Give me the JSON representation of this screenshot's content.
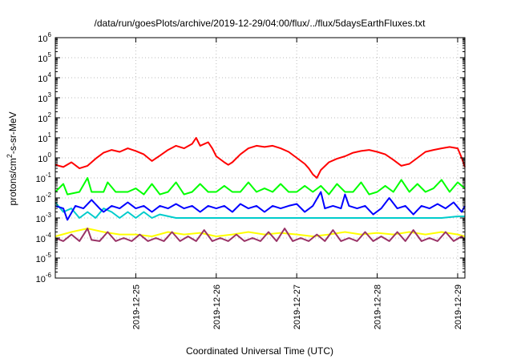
{
  "chart_data": {
    "type": "line",
    "title": "/data/run/goesPlots/archive/2019-12-29/04:00/flux/../flux/5daysEarthFluxes.txt",
    "xlabel": "Coordinated Universal Time (UTC)",
    "ylabel_parts": [
      "protons/cm",
      "2",
      "-s-sr-MeV"
    ],
    "yscale": "log",
    "ylim": [
      1e-06,
      1000000.0
    ],
    "xlim": [
      0.0,
      5.09
    ],
    "x_origin_date": "2019-12-24",
    "y_ticks": [
      {
        "base": "10",
        "exp": "-6"
      },
      {
        "base": "10",
        "exp": "-5"
      },
      {
        "base": "10",
        "exp": "-4"
      },
      {
        "base": "10",
        "exp": "-3"
      },
      {
        "base": "10",
        "exp": "-2"
      },
      {
        "base": "10",
        "exp": "-1"
      },
      {
        "base": "10",
        "exp": "0"
      },
      {
        "base": "10",
        "exp": "1"
      },
      {
        "base": "10",
        "exp": "2"
      },
      {
        "base": "10",
        "exp": "3"
      },
      {
        "base": "10",
        "exp": "4"
      },
      {
        "base": "10",
        "exp": "5"
      },
      {
        "base": "10",
        "exp": "6"
      }
    ],
    "x_ticks": [
      "2019-12-25",
      "2019-12-26",
      "2019-12-27",
      "2019-12-28",
      "2019-12-29"
    ],
    "x_tick_days": [
      1,
      2,
      3,
      4,
      5
    ],
    "grid": true,
    "series": [
      {
        "color": "#ff0000",
        "points": [
          [
            0.0,
            0.45
          ],
          [
            0.1,
            0.35
          ],
          [
            0.2,
            0.6
          ],
          [
            0.3,
            0.3
          ],
          [
            0.4,
            0.4
          ],
          [
            0.5,
            0.9
          ],
          [
            0.6,
            1.8
          ],
          [
            0.7,
            2.5
          ],
          [
            0.8,
            2.0
          ],
          [
            0.9,
            3.0
          ],
          [
            1.0,
            2.2
          ],
          [
            1.1,
            1.5
          ],
          [
            1.2,
            0.7
          ],
          [
            1.3,
            1.3
          ],
          [
            1.4,
            2.5
          ],
          [
            1.5,
            4.0
          ],
          [
            1.6,
            3.0
          ],
          [
            1.7,
            5.0
          ],
          [
            1.75,
            10.0
          ],
          [
            1.8,
            4.0
          ],
          [
            1.9,
            6.0
          ],
          [
            1.95,
            3.0
          ],
          [
            2.0,
            1.2
          ],
          [
            2.1,
            0.6
          ],
          [
            2.15,
            0.45
          ],
          [
            2.2,
            0.6
          ],
          [
            2.3,
            1.5
          ],
          [
            2.4,
            3.0
          ],
          [
            2.5,
            4.0
          ],
          [
            2.6,
            3.5
          ],
          [
            2.7,
            4.0
          ],
          [
            2.8,
            3.0
          ],
          [
            2.9,
            2.0
          ],
          [
            3.0,
            1.0
          ],
          [
            3.1,
            0.5
          ],
          [
            3.15,
            0.3
          ],
          [
            3.2,
            0.15
          ],
          [
            3.25,
            0.1
          ],
          [
            3.3,
            0.25
          ],
          [
            3.4,
            0.6
          ],
          [
            3.5,
            0.9
          ],
          [
            3.6,
            1.2
          ],
          [
            3.7,
            1.8
          ],
          [
            3.8,
            2.2
          ],
          [
            3.9,
            2.5
          ],
          [
            4.0,
            2.0
          ],
          [
            4.1,
            1.5
          ],
          [
            4.2,
            0.8
          ],
          [
            4.3,
            0.4
          ],
          [
            4.4,
            0.5
          ],
          [
            4.5,
            1.0
          ],
          [
            4.6,
            2.0
          ],
          [
            4.7,
            2.5
          ],
          [
            4.8,
            3.0
          ],
          [
            4.9,
            3.5
          ],
          [
            5.0,
            3.0
          ],
          [
            5.05,
            1.0
          ],
          [
            5.09,
            0.35
          ]
        ]
      },
      {
        "color": "#00ff00",
        "points": [
          [
            0.0,
            0.02
          ],
          [
            0.1,
            0.05
          ],
          [
            0.15,
            0.015
          ],
          [
            0.3,
            0.02
          ],
          [
            0.4,
            0.1
          ],
          [
            0.45,
            0.02
          ],
          [
            0.6,
            0.02
          ],
          [
            0.65,
            0.06
          ],
          [
            0.75,
            0.02
          ],
          [
            0.9,
            0.02
          ],
          [
            1.0,
            0.03
          ],
          [
            1.1,
            0.015
          ],
          [
            1.2,
            0.05
          ],
          [
            1.3,
            0.015
          ],
          [
            1.4,
            0.02
          ],
          [
            1.5,
            0.06
          ],
          [
            1.6,
            0.015
          ],
          [
            1.7,
            0.02
          ],
          [
            1.8,
            0.05
          ],
          [
            1.9,
            0.02
          ],
          [
            2.0,
            0.02
          ],
          [
            2.1,
            0.04
          ],
          [
            2.2,
            0.02
          ],
          [
            2.3,
            0.02
          ],
          [
            2.4,
            0.06
          ],
          [
            2.5,
            0.02
          ],
          [
            2.6,
            0.03
          ],
          [
            2.7,
            0.02
          ],
          [
            2.8,
            0.05
          ],
          [
            2.9,
            0.02
          ],
          [
            3.0,
            0.02
          ],
          [
            3.1,
            0.04
          ],
          [
            3.2,
            0.02
          ],
          [
            3.3,
            0.04
          ],
          [
            3.4,
            0.015
          ],
          [
            3.5,
            0.05
          ],
          [
            3.6,
            0.02
          ],
          [
            3.7,
            0.02
          ],
          [
            3.8,
            0.06
          ],
          [
            3.9,
            0.015
          ],
          [
            4.0,
            0.02
          ],
          [
            4.1,
            0.04
          ],
          [
            4.2,
            0.02
          ],
          [
            4.3,
            0.08
          ],
          [
            4.4,
            0.02
          ],
          [
            4.5,
            0.05
          ],
          [
            4.6,
            0.02
          ],
          [
            4.7,
            0.03
          ],
          [
            4.8,
            0.08
          ],
          [
            4.9,
            0.02
          ],
          [
            5.0,
            0.06
          ],
          [
            5.09,
            0.03
          ]
        ]
      },
      {
        "color": "#00cccc",
        "points": [
          [
            0.0,
            0.006
          ],
          [
            0.1,
            0.002
          ],
          [
            0.2,
            0.003
          ],
          [
            0.3,
            0.001
          ],
          [
            0.4,
            0.002
          ],
          [
            0.5,
            0.001
          ],
          [
            0.6,
            0.003
          ],
          [
            0.7,
            0.002
          ],
          [
            0.8,
            0.001
          ],
          [
            0.9,
            0.002
          ],
          [
            1.0,
            0.001
          ],
          [
            1.1,
            0.002
          ],
          [
            1.2,
            0.001
          ],
          [
            1.3,
            0.0015
          ],
          [
            1.5,
            0.001
          ],
          [
            1.7,
            0.001
          ],
          [
            1.9,
            0.001
          ],
          [
            2.0,
            0.001
          ],
          [
            2.2,
            0.001
          ],
          [
            2.4,
            0.001
          ],
          [
            2.6,
            0.001
          ],
          [
            2.8,
            0.001
          ],
          [
            3.0,
            0.001
          ],
          [
            3.2,
            0.001
          ],
          [
            3.4,
            0.001
          ],
          [
            3.6,
            0.001
          ],
          [
            3.8,
            0.001
          ],
          [
            4.0,
            0.001
          ],
          [
            4.2,
            0.001
          ],
          [
            4.4,
            0.001
          ],
          [
            4.6,
            0.001
          ],
          [
            4.8,
            0.001
          ],
          [
            5.0,
            0.0012
          ],
          [
            5.09,
            0.0012
          ]
        ]
      },
      {
        "color": "#0000ff",
        "points": [
          [
            0.0,
            0.004
          ],
          [
            0.1,
            0.003
          ],
          [
            0.15,
            0.0008
          ],
          [
            0.25,
            0.004
          ],
          [
            0.35,
            0.003
          ],
          [
            0.45,
            0.008
          ],
          [
            0.55,
            0.003
          ],
          [
            0.6,
            0.002
          ],
          [
            0.7,
            0.004
          ],
          [
            0.8,
            0.003
          ],
          [
            0.9,
            0.006
          ],
          [
            1.0,
            0.003
          ],
          [
            1.1,
            0.004
          ],
          [
            1.2,
            0.002
          ],
          [
            1.3,
            0.004
          ],
          [
            1.4,
            0.003
          ],
          [
            1.5,
            0.005
          ],
          [
            1.6,
            0.003
          ],
          [
            1.7,
            0.004
          ],
          [
            1.8,
            0.002
          ],
          [
            1.9,
            0.004
          ],
          [
            2.0,
            0.003
          ],
          [
            2.1,
            0.004
          ],
          [
            2.2,
            0.002
          ],
          [
            2.3,
            0.005
          ],
          [
            2.4,
            0.003
          ],
          [
            2.5,
            0.004
          ],
          [
            2.6,
            0.002
          ],
          [
            2.7,
            0.004
          ],
          [
            2.8,
            0.003
          ],
          [
            2.9,
            0.004
          ],
          [
            3.0,
            0.005
          ],
          [
            3.1,
            0.002
          ],
          [
            3.2,
            0.004
          ],
          [
            3.3,
            0.02
          ],
          [
            3.35,
            0.003
          ],
          [
            3.45,
            0.004
          ],
          [
            3.55,
            0.003
          ],
          [
            3.6,
            0.015
          ],
          [
            3.65,
            0.004
          ],
          [
            3.75,
            0.003
          ],
          [
            3.85,
            0.004
          ],
          [
            3.95,
            0.0015
          ],
          [
            4.05,
            0.003
          ],
          [
            4.15,
            0.01
          ],
          [
            4.25,
            0.003
          ],
          [
            4.35,
            0.004
          ],
          [
            4.45,
            0.0015
          ],
          [
            4.55,
            0.004
          ],
          [
            4.65,
            0.003
          ],
          [
            4.75,
            0.005
          ],
          [
            4.85,
            0.003
          ],
          [
            4.95,
            0.006
          ],
          [
            5.05,
            0.002
          ],
          [
            5.09,
            0.004
          ]
        ]
      },
      {
        "color": "#ffff00",
        "points": [
          [
            0.0,
            0.00012
          ],
          [
            0.2,
            0.0002
          ],
          [
            0.4,
            0.0003
          ],
          [
            0.6,
            0.0002
          ],
          [
            0.8,
            0.00015
          ],
          [
            1.0,
            0.00015
          ],
          [
            1.2,
            0.00012
          ],
          [
            1.4,
            0.0002
          ],
          [
            1.6,
            0.00015
          ],
          [
            1.8,
            0.00018
          ],
          [
            2.0,
            0.00012
          ],
          [
            2.2,
            0.00015
          ],
          [
            2.4,
            0.0002
          ],
          [
            2.6,
            0.00015
          ],
          [
            2.8,
            0.00018
          ],
          [
            3.0,
            0.00015
          ],
          [
            3.2,
            0.00012
          ],
          [
            3.4,
            0.00015
          ],
          [
            3.6,
            0.0002
          ],
          [
            3.8,
            0.00015
          ],
          [
            4.0,
            0.00018
          ],
          [
            4.2,
            0.00015
          ],
          [
            4.4,
            0.0002
          ],
          [
            4.6,
            0.00015
          ],
          [
            4.8,
            0.0002
          ],
          [
            5.0,
            0.00015
          ],
          [
            5.09,
            0.00012
          ]
        ]
      },
      {
        "color": "#993366",
        "points": [
          [
            0.0,
            0.0001
          ],
          [
            0.1,
            7e-05
          ],
          [
            0.2,
            0.00015
          ],
          [
            0.3,
            7e-05
          ],
          [
            0.4,
            0.0003
          ],
          [
            0.45,
            8e-05
          ],
          [
            0.55,
            7e-05
          ],
          [
            0.65,
            0.0002
          ],
          [
            0.75,
            7e-05
          ],
          [
            0.85,
            0.0001
          ],
          [
            0.95,
            7e-05
          ],
          [
            1.05,
            0.00015
          ],
          [
            1.15,
            7e-05
          ],
          [
            1.25,
            0.0001
          ],
          [
            1.35,
            7e-05
          ],
          [
            1.45,
            0.0002
          ],
          [
            1.55,
            7e-05
          ],
          [
            1.65,
            0.00012
          ],
          [
            1.75,
            7e-05
          ],
          [
            1.85,
            0.00025
          ],
          [
            1.95,
            7e-05
          ],
          [
            2.05,
            0.0001
          ],
          [
            2.15,
            7e-05
          ],
          [
            2.25,
            0.00015
          ],
          [
            2.35,
            7e-05
          ],
          [
            2.45,
            0.0001
          ],
          [
            2.55,
            7e-05
          ],
          [
            2.65,
            0.0002
          ],
          [
            2.75,
            7e-05
          ],
          [
            2.85,
            0.0003
          ],
          [
            2.95,
            7e-05
          ],
          [
            3.05,
            0.0001
          ],
          [
            3.15,
            7e-05
          ],
          [
            3.25,
            0.00015
          ],
          [
            3.35,
            7e-05
          ],
          [
            3.45,
            0.00025
          ],
          [
            3.55,
            7e-05
          ],
          [
            3.65,
            0.0001
          ],
          [
            3.75,
            7e-05
          ],
          [
            3.85,
            0.0002
          ],
          [
            3.95,
            7e-05
          ],
          [
            4.05,
            0.00012
          ],
          [
            4.15,
            7e-05
          ],
          [
            4.25,
            0.0002
          ],
          [
            4.35,
            7e-05
          ],
          [
            4.45,
            0.00025
          ],
          [
            4.55,
            7e-05
          ],
          [
            4.65,
            0.0001
          ],
          [
            4.75,
            7e-05
          ],
          [
            4.85,
            0.0002
          ],
          [
            4.95,
            7e-05
          ],
          [
            5.05,
            0.00012
          ],
          [
            5.09,
            8e-05
          ]
        ]
      }
    ]
  }
}
